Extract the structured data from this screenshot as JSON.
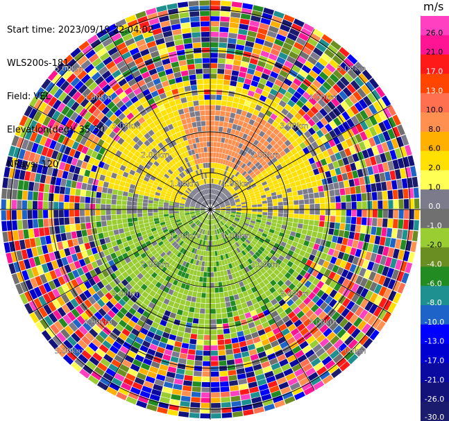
{
  "header": {
    "start_time": "Start time: 2023/09/19 22:04:02",
    "instrument": "WLS200s-181",
    "field": "Field: VEL",
    "elevation": "Elevation(deg): 35.30",
    "nrays": "NRays: 120"
  },
  "chart_data": {
    "type": "heatmap",
    "projection": "polar PPI",
    "field": "VEL",
    "units": "m/s",
    "nrays": 120,
    "range_rings_km": [
      1.0,
      2.0,
      3.0,
      4.0,
      5.0
    ],
    "range_ring_labels": [
      "1.00km",
      "2.00km",
      "3.00km",
      "4.00km",
      "5.00km"
    ],
    "spokes_every_deg": 30,
    "colorbar": {
      "label": "m/s",
      "levels": [
        -30.0,
        -26.0,
        -21.0,
        -17.0,
        -13.0,
        -10.0,
        -8.0,
        -6.0,
        -4.0,
        -2.0,
        -1.0,
        0.0,
        1.0,
        2.0,
        6.0,
        8.0,
        10.0,
        13.0,
        17.0,
        21.0,
        26.0
      ],
      "tick_labels": [
        "-30.0",
        "-26.0",
        "-21.0",
        "-17.0",
        "-13.0",
        "-10.0",
        "-8.0",
        "-6.0",
        "-4.0",
        "-2.0",
        "-1.0",
        "0.0",
        "1.0",
        "2.0",
        "6.0",
        "8.0",
        "10.0",
        "13.0",
        "17.0",
        "21.0",
        "26.0"
      ],
      "colors": [
        "#1c1c6e",
        "#12127a",
        "#0a0aa0",
        "#0000d0",
        "#0000ff",
        "#1e64c8",
        "#1e9090",
        "#228b22",
        "#6b8e23",
        "#9acd32",
        "#707070",
        "#7b7b8c",
        "#ffff55",
        "#ffe000",
        "#ffb000",
        "#ff9050",
        "#ff7050",
        "#ff4500",
        "#ff1a1a",
        "#ff1493",
        "#ff40c0"
      ]
    },
    "regions_description_levels": {
      "north_core": 8.0,
      "north_mid": 2.0,
      "south": -2.0,
      "patches": -6.0,
      "center": 0.0
    }
  }
}
